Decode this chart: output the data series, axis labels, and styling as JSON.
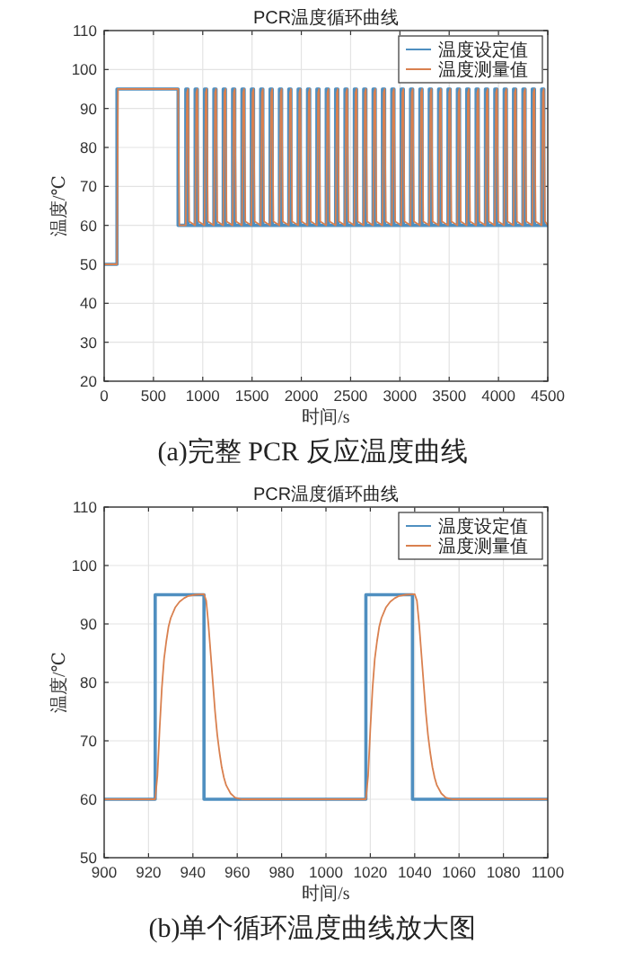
{
  "chart_data": [
    {
      "type": "line",
      "title": "PCR温度循环曲线",
      "xlabel": "时间/s",
      "ylabel": "温度/℃",
      "xlim": [
        0,
        4500
      ],
      "ylim": [
        20,
        110
      ],
      "xticks": [
        0,
        500,
        1000,
        1500,
        2000,
        2500,
        3000,
        3500,
        4000,
        4500
      ],
      "yticks": [
        20,
        30,
        40,
        50,
        60,
        70,
        80,
        90,
        100,
        110
      ],
      "grid": true,
      "legend": "top right",
      "annotations": [
        "(a)完整 PCR 反应温度曲线"
      ],
      "series": [
        {
          "name": "温度设定值",
          "color": "#4f8fc0",
          "x": [
            10,
            130,
            130,
            750,
            750,
            828,
            828,
            850,
            850,
            923,
            923,
            945,
            945,
            1018,
            1018,
            1040,
            1040,
            1113,
            1113,
            1135,
            1135,
            1208,
            1208,
            1230,
            1230,
            1303,
            1303,
            1325,
            1325,
            1398,
            1398,
            1420,
            1420,
            1493,
            1493,
            1515,
            1515,
            1588,
            1588,
            1610,
            1610,
            1683,
            1683,
            1705,
            1705,
            1778,
            1778,
            1800,
            1800,
            1873,
            1873,
            1895,
            1895,
            1968,
            1968,
            1990,
            1990,
            2063,
            2063,
            2085,
            2085,
            2158,
            2158,
            2180,
            2180,
            2253,
            2253,
            2275,
            2275,
            2348,
            2348,
            2370,
            2370,
            2443,
            2443,
            2465,
            2465,
            2538,
            2538,
            2560,
            2560,
            2633,
            2633,
            2655,
            2655,
            2728,
            2728,
            2750,
            2750,
            2823,
            2823,
            2845,
            2845,
            2918,
            2918,
            2940,
            2940,
            3013,
            3013,
            3035,
            3035,
            3108,
            3108,
            3130,
            3130,
            3203,
            3203,
            3225,
            3225,
            3298,
            3298,
            3320,
            3320,
            3393,
            3393,
            3415,
            3415,
            3488,
            3488,
            3510,
            3510,
            3583,
            3583,
            3605,
            3605,
            3678,
            3678,
            3700,
            3700,
            3773,
            3773,
            3795,
            3795,
            3868,
            3868,
            3890,
            3890,
            3963,
            3963,
            3985,
            3985,
            4058,
            4058,
            4080,
            4080,
            4153,
            4153,
            4175,
            4175,
            4248,
            4248,
            4270,
            4270,
            4343,
            4343,
            4365,
            4365,
            4438,
            4438,
            4460,
            4460,
            4500
          ],
          "values": [
            50,
            50,
            95,
            95,
            60,
            60,
            95,
            95,
            60,
            60,
            95,
            95,
            60,
            60,
            95,
            95,
            60,
            60,
            95,
            95,
            60,
            60,
            95,
            95,
            60,
            60,
            95,
            95,
            60,
            60,
            95,
            95,
            60,
            60,
            95,
            95,
            60,
            60,
            95,
            95,
            60,
            60,
            95,
            95,
            60,
            60,
            95,
            95,
            60,
            60,
            95,
            95,
            60,
            60,
            95,
            95,
            60,
            60,
            95,
            95,
            60,
            60,
            95,
            95,
            60,
            60,
            95,
            95,
            60,
            60,
            95,
            95,
            60,
            60,
            95,
            95,
            60,
            60,
            95,
            95,
            60,
            60,
            95,
            95,
            60,
            60,
            95,
            95,
            60,
            60,
            95,
            95,
            60,
            60,
            95,
            95,
            60,
            60,
            95,
            95,
            60,
            60,
            95,
            95,
            60,
            60,
            95,
            95,
            60,
            60,
            95,
            95,
            60,
            60,
            95,
            95,
            60,
            60,
            95,
            95,
            60,
            60,
            95,
            95,
            60,
            60,
            95,
            95,
            60,
            60,
            95,
            95,
            60,
            60,
            95,
            95,
            60,
            60,
            95,
            95,
            60,
            60,
            95,
            95,
            60,
            60,
            95,
            95,
            60,
            60,
            95,
            95,
            60,
            60,
            95,
            95,
            60,
            60,
            95,
            95,
            60,
            60
          ]
        },
        {
          "name": "温度测量值",
          "color": "#d9804f",
          "x": [
            10,
            130,
            140,
            750,
            762,
            828,
            840,
            850,
            862,
            923,
            935,
            945,
            957,
            1018,
            1030,
            1040,
            1052,
            1113,
            1125,
            1135,
            1147,
            1208,
            1220,
            1230,
            1242,
            1303,
            1315,
            1325,
            1337,
            1398,
            1410,
            1420,
            1432,
            1493,
            1505,
            1515,
            1527,
            1588,
            1600,
            1610,
            1622,
            1683,
            1695,
            1705,
            1717,
            1778,
            1790,
            1800,
            1812,
            1873,
            1885,
            1895,
            1907,
            1968,
            1980,
            1990,
            2002,
            2063,
            2075,
            2085,
            2097,
            2158,
            2170,
            2180,
            2192,
            2253,
            2265,
            2275,
            2287,
            2348,
            2360,
            2370,
            2382,
            2443,
            2455,
            2465,
            2477,
            2538,
            2550,
            2560,
            2572,
            2633,
            2645,
            2655,
            2667,
            2728,
            2740,
            2750,
            2762,
            2823,
            2835,
            2845,
            2857,
            2918,
            2930,
            2940,
            2952,
            3013,
            3025,
            3035,
            3047,
            3108,
            3120,
            3130,
            3142,
            3203,
            3215,
            3225,
            3237,
            3298,
            3310,
            3320,
            3332,
            3393,
            3405,
            3415,
            3427,
            3488,
            3500,
            3510,
            3522,
            3583,
            3595,
            3605,
            3617,
            3678,
            3690,
            3700,
            3712,
            3773,
            3785,
            3795,
            3807,
            3868,
            3880,
            3890,
            3902,
            3963,
            3975,
            3985,
            3997,
            4058,
            4070,
            4080,
            4092,
            4153,
            4165,
            4175,
            4187,
            4248,
            4260,
            4270,
            4282,
            4343,
            4355,
            4365,
            4377,
            4438,
            4450,
            4460,
            4472,
            4500
          ],
          "values": [
            50,
            50,
            95,
            95,
            60,
            60,
            94,
            95,
            61,
            60,
            94,
            95,
            61,
            60,
            94,
            95,
            61,
            60,
            94,
            95,
            61,
            60,
            94,
            95,
            61,
            60,
            94,
            95,
            61,
            60,
            94,
            95,
            61,
            60,
            94,
            95,
            61,
            60,
            94,
            95,
            61,
            60,
            94,
            95,
            61,
            60,
            94,
            95,
            61,
            60,
            94,
            95,
            61,
            60,
            94,
            95,
            61,
            60,
            94,
            95,
            61,
            60,
            94,
            95,
            61,
            60,
            94,
            95,
            61,
            60,
            94,
            95,
            61,
            60,
            94,
            95,
            61,
            60,
            94,
            95,
            61,
            60,
            94,
            95,
            61,
            60,
            94,
            95,
            61,
            60,
            94,
            95,
            61,
            60,
            94,
            95,
            61,
            60,
            94,
            95,
            61,
            60,
            94,
            95,
            61,
            60,
            94,
            95,
            61,
            60,
            94,
            95,
            61,
            60,
            94,
            95,
            61,
            60,
            94,
            95,
            61,
            60,
            94,
            95,
            61,
            60,
            94,
            95,
            61,
            60,
            94,
            95,
            61,
            60,
            94,
            95,
            61,
            60,
            94,
            95,
            61,
            60,
            94,
            95,
            61,
            60,
            94,
            95,
            61,
            60,
            94,
            95,
            61,
            60,
            94,
            95,
            61,
            60,
            94,
            95,
            61,
            60
          ]
        }
      ]
    },
    {
      "type": "line",
      "title": "PCR温度循环曲线",
      "xlabel": "时间/s",
      "ylabel": "温度/℃",
      "xlim": [
        900,
        1100
      ],
      "ylim": [
        50,
        110
      ],
      "xticks": [
        900,
        920,
        940,
        960,
        980,
        1000,
        1020,
        1040,
        1060,
        1080,
        1100
      ],
      "yticks": [
        50,
        60,
        70,
        80,
        90,
        100,
        110
      ],
      "grid": true,
      "legend": "top right",
      "annotations": [
        "(b)单个循环温度曲线放大图"
      ],
      "series": [
        {
          "name": "温度设定值",
          "color": "#4f8fc0",
          "x": [
            900,
            923,
            923,
            945,
            945,
            1018,
            1018,
            1039,
            1039,
            1100
          ],
          "values": [
            60,
            60,
            95,
            95,
            60,
            60,
            95,
            95,
            60,
            60
          ]
        },
        {
          "name": "温度测量值",
          "color": "#d9804f",
          "x": [
            900,
            923,
            924,
            925,
            926,
            927,
            928,
            929,
            930,
            932,
            934,
            936,
            938,
            941,
            945,
            946,
            947,
            948,
            949,
            950,
            951,
            952,
            953,
            954,
            955,
            957,
            959,
            962,
            1018,
            1019,
            1020,
            1021,
            1022,
            1023,
            1024,
            1025,
            1027,
            1029,
            1031,
            1033,
            1036,
            1040,
            1041,
            1042,
            1043,
            1044,
            1045,
            1046,
            1047,
            1048,
            1049,
            1050,
            1052,
            1054,
            1057,
            1100
          ],
          "values": [
            60,
            60,
            64,
            72,
            79,
            84,
            87,
            89.5,
            91,
            92.8,
            93.8,
            94.4,
            94.8,
            95,
            95.1,
            94,
            90,
            85,
            80,
            75,
            71,
            68,
            65.5,
            63.7,
            62.4,
            61,
            60.3,
            60,
            60,
            64,
            72,
            79,
            84,
            87,
            89.5,
            91,
            92.8,
            93.8,
            94.4,
            94.8,
            95,
            95.1,
            94,
            90,
            85,
            80,
            75,
            71,
            68,
            65.5,
            63.7,
            62.4,
            61,
            60.3,
            60,
            60
          ]
        }
      ]
    }
  ]
}
